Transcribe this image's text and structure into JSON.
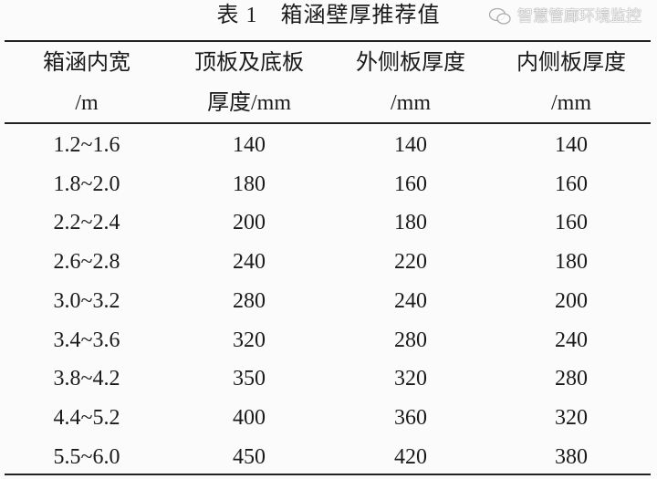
{
  "title": "表 1　箱涵壁厚推荐值",
  "table": {
    "header_row1": [
      "箱涵内宽",
      "顶板及底板",
      "外侧板厚度",
      "内侧板厚度"
    ],
    "header_row2": [
      "/m",
      "厚度/mm",
      "/mm",
      "/mm"
    ],
    "rows": [
      [
        "1.2~1.6",
        "140",
        "140",
        "140"
      ],
      [
        "1.8~2.0",
        "180",
        "160",
        "160"
      ],
      [
        "2.2~2.4",
        "200",
        "180",
        "160"
      ],
      [
        "2.6~2.8",
        "240",
        "220",
        "180"
      ],
      [
        "3.0~3.2",
        "280",
        "240",
        "200"
      ],
      [
        "3.4~3.6",
        "320",
        "280",
        "240"
      ],
      [
        "3.8~4.2",
        "350",
        "320",
        "280"
      ],
      [
        "4.4~5.2",
        "400",
        "360",
        "320"
      ],
      [
        "5.5~6.0",
        "450",
        "420",
        "380"
      ]
    ]
  },
  "watermark": {
    "icon": "wechat-icon",
    "text": "智慧管廊环境监控"
  }
}
